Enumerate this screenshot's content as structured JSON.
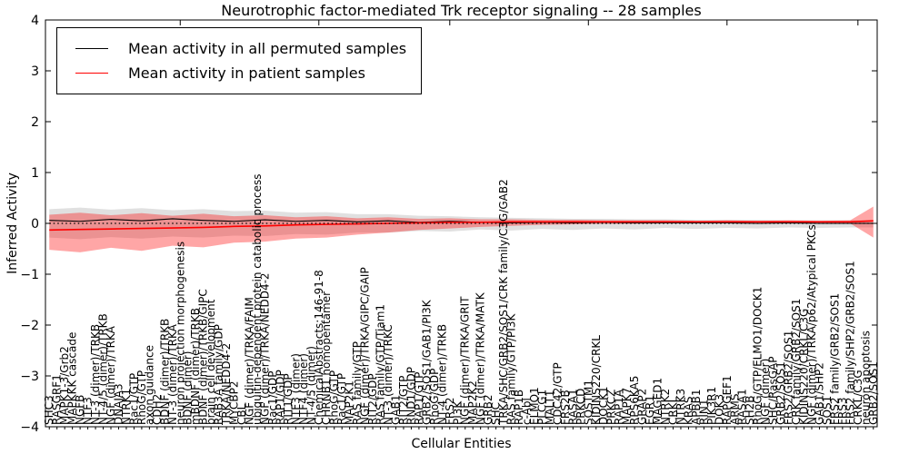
{
  "figure": {
    "title": "Neurotrophic factor-mediated Trk receptor signaling -- 28 samples",
    "xlabel": "Cellular Entities",
    "ylabel": "Inferred Activity",
    "sample_count_in_title": "28 samples"
  },
  "legend": {
    "position": "upper left",
    "entries": [
      {
        "label": "Mean activity in all permuted samples",
        "color": "#000000"
      },
      {
        "label": "Mean activity in patient samples",
        "color": "#ff0000"
      }
    ]
  },
  "chart_data": {
    "type": "line",
    "title": "Neurotrophic factor-mediated Trk receptor signaling -- 28 samples",
    "xlabel": "Cellular Entities",
    "ylabel": "Inferred Activity",
    "ylim": [
      -4,
      4
    ],
    "yticks": [
      -4,
      -3,
      -2,
      -1,
      0,
      1,
      2,
      3,
      4
    ],
    "grid": false,
    "legend_position": "upper left",
    "n_entities": 108,
    "top_tick_indices": [
      17,
      35,
      52,
      70,
      88,
      105
    ],
    "categories": [
      "SHC3",
      "RASGRF1",
      "MAPK1-3/Grb2",
      "MAPKKK cascade",
      "NGFB",
      "NTF3",
      "NT-3 (dimer)/TRKB",
      "NT-4/5 (dimer)/TRKB",
      "NGF (dimer)/TRKA",
      "DNAJA3",
      "NTRK1",
      "Rac1/GTP",
      "RhoG/GTP",
      "axon guidance",
      "CDH2",
      "BDNF (dimer)/TRKB",
      "NT-3 (dimer)/TRKA",
      "neuron projection morphogenesis",
      "BDNF (dimer)",
      "mBDNF (dimer)/TRKB",
      "BDNF (dimer)/TRKB/GIPC",
      "brain cell development",
      "RAB3A family/GDP",
      "TRKA/NEDD4-2",
      "MYCBP2",
      "CBL",
      "NGF (dimer)/TRKA/FAIM",
      "ubiquitin-dependent protein catabolic process",
      "NGF (dimer)/TRKA/NEDD4-2",
      "Rac1/GDP",
      "RAP1/GDP",
      "RIT1/GDP",
      "NTF3 (dimer)",
      "NTF4 (dimer)",
      "NT-4/5 (dimer)",
      "ChemicalAbstracts:146-91-8",
      "CHRNB1 homopentamer",
      "RhoG/GTP",
      "Rac1/GTP",
      "MAP2K1",
      "RAS family/GTP",
      "NGF (dimer)/TRKA/GIPC/GAIP",
      "RIT2/GDP",
      "RAS family/GTP/Tiam1",
      "NT-3 (dimer)/TRKC",
      "GAB1",
      "RIT2/GTP",
      "RND1/GDP",
      "RAP1/GTP",
      "GRB2/SOS1/GAB1/PI3K",
      "RhoG/GDP",
      "NT-4 (dimer)/TRKB",
      "FRS2",
      "PI3K",
      "NGF (dimer)/TRKA/GRIT",
      "MAP2K2",
      "NGF (dimer)/TRKA/MATK",
      "GRB2",
      "SHC",
      "TRKA/SHC/GRB2/SOS1/CRK family/C3G/GAB2",
      "RAS family/GTP/PI3K",
      "RAP1B",
      "c-Abl",
      "ELMO1",
      "PLCG1",
      "MALT1",
      "CDC42/GTP",
      "FRS2B",
      "RASA1",
      "PRKCD",
      "SQSTM1",
      "KIDINS220/CRKL",
      "DOCK1",
      "PRKCZ",
      "RAP1A",
      "MAPK7",
      "RPS6KA5",
      "GRAP2",
      "EGR1",
      "MAGED1",
      "NTRK2",
      "CRKL",
      "NTRK3",
      "KRAS",
      "APBB1",
      "RIN1",
      "PIK3R1",
      "DOK3",
      "RAPGEF1",
      "ARMS",
      "RASA1",
      "SH2B",
      "RhoG/GTP/ELMO1/DOCK1",
      "NGF (dimer)",
      "SHC/RasGAP",
      "GRB2/SOS1",
      "FRS2/GRB2/SOS1",
      "CRK family/GRB2/SOS1",
      "KIDINS220/CRKL/C3G",
      "NGF (dimer)/TRKA/p62/Atypical PKCs",
      "GAB1/SHP2",
      "SOS1",
      "FRS2 family/GRB2/SOS1",
      "FRS3",
      "FRS2 family/SHP2/GRB2/SOS1",
      "CRKL/C3G",
      "neuron apoptosis",
      "GRB2/SOS1"
    ],
    "series": [
      {
        "name": "Mean activity in all permuted samples",
        "color": "#000000",
        "style": "solid",
        "width": 1.1,
        "x": [
          0,
          4,
          8,
          12,
          16,
          20,
          24,
          28,
          32,
          36,
          40,
          44,
          48,
          52,
          56,
          60,
          64,
          68,
          72,
          76,
          80,
          84,
          88,
          92,
          96,
          100,
          104,
          107
        ],
        "values": [
          0.06,
          0.04,
          0.08,
          0.05,
          0.09,
          0.06,
          0.04,
          0.07,
          0.04,
          0.06,
          0.03,
          0.05,
          0.02,
          0.04,
          0.02,
          0.01,
          0.02,
          0.01,
          0.02,
          0.01,
          0.01,
          0.01,
          0.01,
          0.0,
          0.01,
          0.0,
          0.0,
          0.0
        ]
      },
      {
        "name": "Mean activity in patient samples",
        "color": "#ff0000",
        "style": "solid",
        "width": 1.6,
        "x": [
          0,
          4,
          8,
          12,
          16,
          20,
          24,
          28,
          32,
          36,
          40,
          44,
          48,
          52,
          56,
          60,
          64,
          68,
          72,
          76,
          80,
          84,
          88,
          92,
          96,
          100,
          104,
          107
        ],
        "values": [
          -0.13,
          -0.12,
          -0.11,
          -0.1,
          -0.09,
          -0.08,
          -0.06,
          -0.05,
          -0.03,
          -0.02,
          -0.01,
          0.0,
          0.01,
          0.02,
          0.02,
          0.03,
          0.03,
          0.03,
          0.03,
          0.03,
          0.03,
          0.03,
          0.03,
          0.03,
          0.03,
          0.03,
          0.03,
          0.05
        ]
      },
      {
        "name": "zero baseline",
        "color": "#000000",
        "style": "dotted",
        "width": 1.2,
        "x": [
          0,
          107
        ],
        "values": [
          0,
          0
        ]
      }
    ],
    "bands": [
      {
        "name": "permuted samples std band",
        "color": "#999999",
        "opacity": 0.3,
        "x": [
          0,
          4,
          8,
          12,
          16,
          20,
          24,
          28,
          32,
          36,
          40,
          44,
          48,
          52,
          56,
          60,
          64,
          68,
          72,
          76,
          80,
          84,
          88,
          92,
          96,
          100,
          104,
          107
        ],
        "upper": [
          0.28,
          0.31,
          0.27,
          0.3,
          0.26,
          0.28,
          0.24,
          0.25,
          0.21,
          0.22,
          0.18,
          0.18,
          0.15,
          0.14,
          0.12,
          0.11,
          0.1,
          0.09,
          0.09,
          0.08,
          0.08,
          0.07,
          0.07,
          0.07,
          0.06,
          0.06,
          0.06,
          0.06
        ],
        "lower": [
          -0.28,
          -0.31,
          -0.27,
          -0.3,
          -0.26,
          -0.28,
          -0.24,
          -0.25,
          -0.21,
          -0.22,
          -0.18,
          -0.18,
          -0.15,
          -0.16,
          -0.12,
          -0.14,
          -0.11,
          -0.13,
          -0.1,
          -0.12,
          -0.09,
          -0.11,
          -0.09,
          -0.1,
          -0.08,
          -0.09,
          -0.08,
          -0.08
        ]
      },
      {
        "name": "patient samples std band",
        "color": "#ff0000",
        "opacity": 0.35,
        "x": [
          0,
          4,
          8,
          12,
          16,
          20,
          24,
          28,
          32,
          36,
          40,
          44,
          48,
          52,
          56,
          60,
          64,
          68,
          72,
          76,
          80,
          84,
          88,
          92,
          96,
          100,
          104,
          107
        ],
        "upper": [
          0.17,
          0.21,
          0.16,
          0.2,
          0.15,
          0.19,
          0.14,
          0.16,
          0.12,
          0.14,
          0.1,
          0.12,
          0.09,
          0.1,
          0.08,
          0.08,
          0.07,
          0.07,
          0.06,
          0.06,
          0.06,
          0.05,
          0.06,
          0.05,
          0.06,
          0.05,
          0.06,
          0.33
        ],
        "lower": [
          -0.52,
          -0.57,
          -0.48,
          -0.54,
          -0.44,
          -0.47,
          -0.38,
          -0.36,
          -0.3,
          -0.28,
          -0.22,
          -0.18,
          -0.13,
          -0.1,
          -0.07,
          -0.05,
          -0.03,
          -0.02,
          -0.01,
          -0.01,
          0.0,
          0.0,
          0.0,
          0.0,
          0.0,
          0.0,
          0.0,
          -0.28
        ]
      }
    ]
  }
}
